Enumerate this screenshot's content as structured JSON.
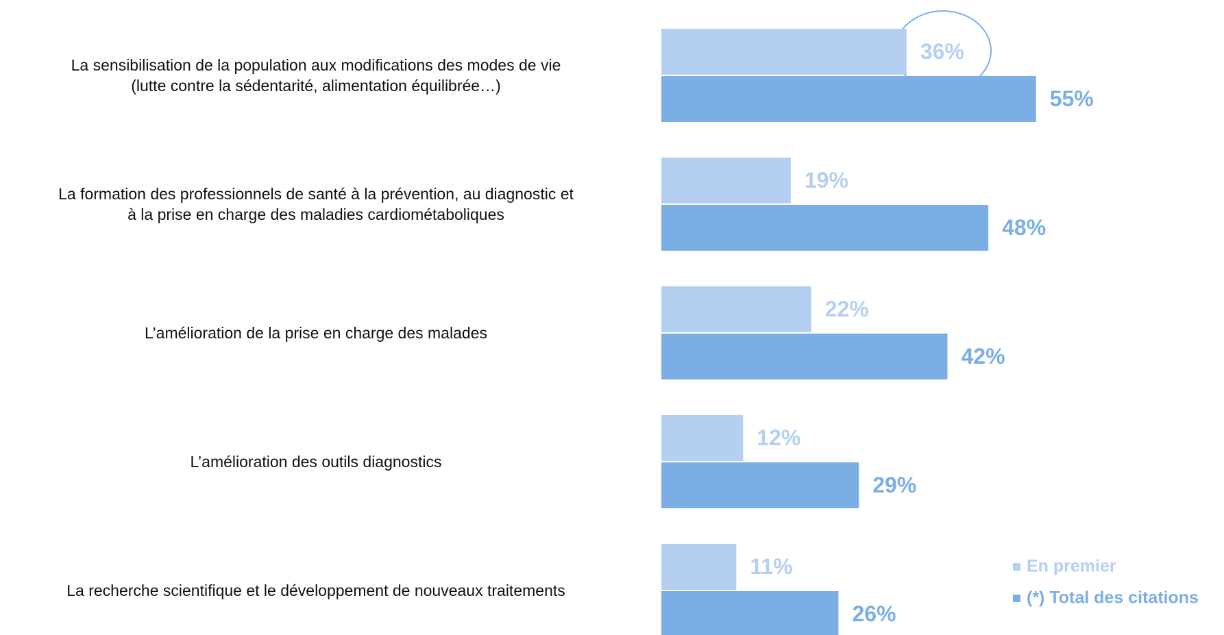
{
  "chart_data": {
    "type": "bar",
    "orientation": "horizontal",
    "categories": [
      "La sensibilisation de la population aux modifications des modes de vie\n(lutte contre la sédentarité, alimentation équilibrée…)",
      "La formation des professionnels de santé à la prévention, au diagnostic et\nà la prise en charge des maladies cardiométaboliques",
      "L’amélioration de la prise en charge des malades",
      "L’amélioration des outils diagnostics",
      "La recherche scientifique et le développement de nouveaux traitements"
    ],
    "series": [
      {
        "name": "En premier",
        "color": "#b4cff2",
        "values": [
          36,
          19,
          22,
          12,
          11
        ],
        "value_labels": [
          "36%",
          "19%",
          "22%",
          "12%",
          "11%"
        ]
      },
      {
        "name": "(*) Total des citations",
        "color": "#7caee6",
        "values": [
          55,
          48,
          42,
          29,
          26
        ],
        "value_labels": [
          "55%",
          "48%",
          "42%",
          "29%",
          "26%"
        ]
      }
    ],
    "xlim": [
      0,
      100
    ],
    "legend": "lower right"
  }
}
